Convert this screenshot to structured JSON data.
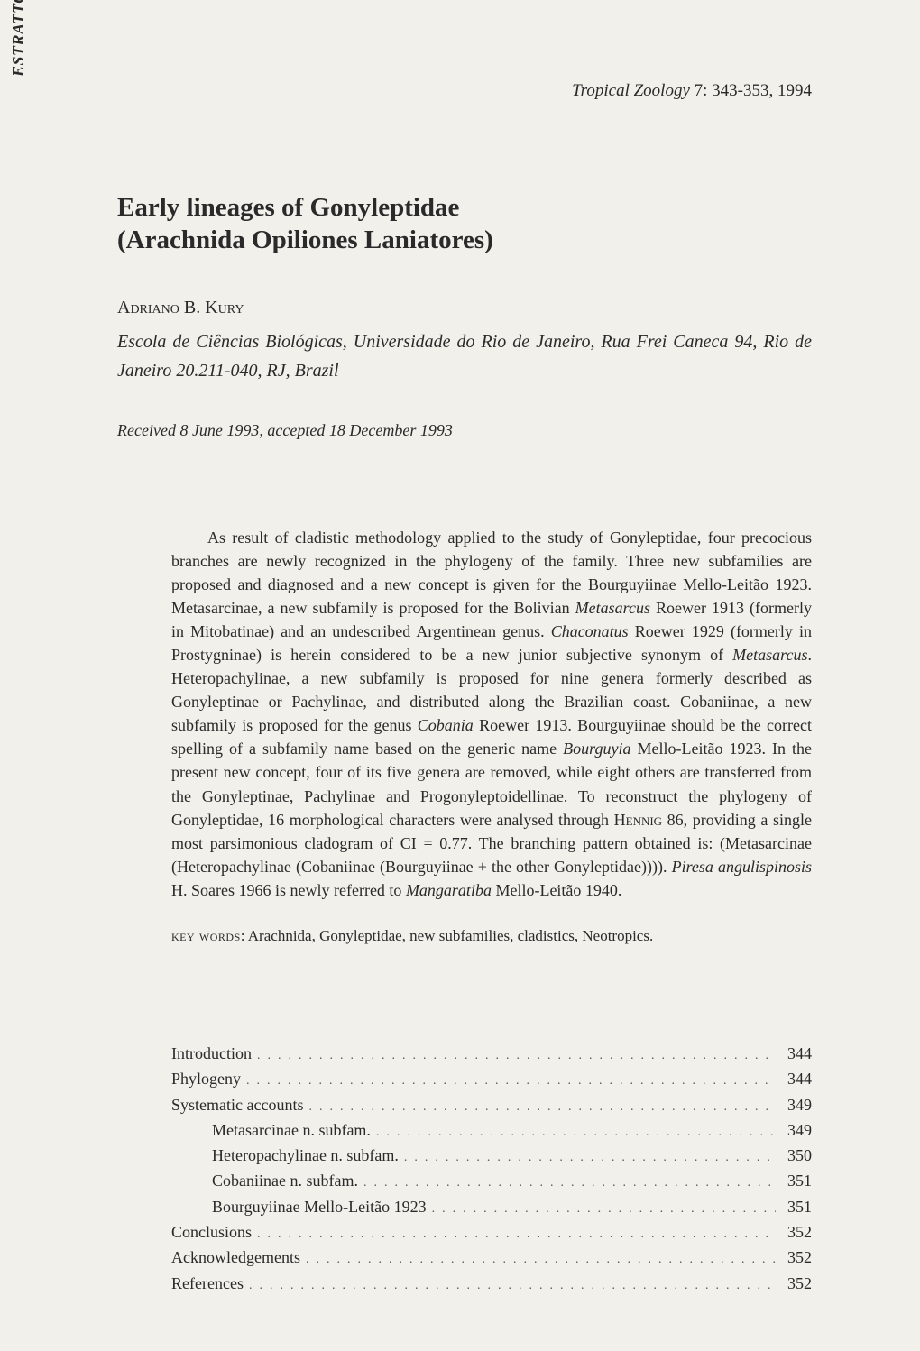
{
  "spine": "ESTRATTO / REPRINT",
  "journal": {
    "name": "Tropical Zoology",
    "rest": " 7: 343-353, 1994"
  },
  "title_line1": "Early lineages of Gonyleptidae",
  "title_line2": "(Arachnida Opiliones Laniatores)",
  "author": "Adriano B. Kury",
  "affiliation": "Escola de Ciências Biológicas, Universidade do Rio de Janeiro, Rua Frei Caneca 94, Rio de Janeiro 20.211-040, RJ, Brazil",
  "received": "Received 8 June 1993, accepted 18 December 1993",
  "abstract_parts": [
    {
      "t": "As result of cladistic methodology applied to the study of Gonyleptidae, four precocious branches are newly recognized in the phylogeny of the family. Three new subfamilies are proposed and diagnosed and a new concept is given for the Bourguyiinae Mello-Leitão 1923. Metasarcinae, a new subfamily is proposed for the Bolivian ",
      "i": false
    },
    {
      "t": "Metasarcus",
      "i": true
    },
    {
      "t": " Roewer 1913 (formerly in Mitobatinae) and an undescribed Argentinean genus. ",
      "i": false
    },
    {
      "t": "Chaconatus",
      "i": true
    },
    {
      "t": " Roewer 1929 (formerly in Prostygninae) is herein considered to be a new junior subjective synonym of ",
      "i": false
    },
    {
      "t": "Metasarcus",
      "i": true
    },
    {
      "t": ". Heteropachylinae, a new subfamily is proposed for nine genera formerly described as Gonyleptinae or Pachylinae, and distributed along the Brazilian coast. Cobaniinae, a new subfamily is proposed for the genus ",
      "i": false
    },
    {
      "t": "Cobania",
      "i": true
    },
    {
      "t": " Roewer 1913. Bourguyiinae should be the correct spelling of a subfamily name based on the generic name ",
      "i": false
    },
    {
      "t": "Bourguyia",
      "i": true
    },
    {
      "t": " Mello-Leitão 1923. In the present new concept, four of its five genera are removed, while eight others are transferred from the Gonyleptinae, Pachylinae and Progonyleptoidellinae. To reconstruct the phylogeny of Gonyleptidae, 16 morphological characters were analysed through ",
      "i": false
    },
    {
      "t": "Hennig",
      "i": false,
      "sc": true
    },
    {
      "t": " 86, providing a single most parsimonious cladogram of CI = 0.77. The branching pattern obtained is: (Metasarcinae (Heteropachylinae (Cobaniinae (Bourguyiinae + the other Gonyleptidae)))). ",
      "i": false
    },
    {
      "t": "Piresa angulispinosis",
      "i": true
    },
    {
      "t": " H. Soares 1966 is newly referred to ",
      "i": false
    },
    {
      "t": "Mangaratiba",
      "i": true
    },
    {
      "t": " Mello-Leitão 1940.",
      "i": false
    }
  ],
  "keywords_label": "key words",
  "keywords": ": Arachnida, Gonyleptidae, new subfamilies, cladistics, Neotropics.",
  "toc": [
    {
      "label": "Introduction",
      "page": "344",
      "indent": false
    },
    {
      "label": "Phylogeny",
      "page": "344",
      "indent": false
    },
    {
      "label": "Systematic accounts",
      "page": "349",
      "indent": false
    },
    {
      "label": "Metasarcinae n. subfam.",
      "page": "349",
      "indent": true
    },
    {
      "label": "Heteropachylinae n. subfam.",
      "page": "350",
      "indent": true
    },
    {
      "label": "Cobaniinae n. subfam.",
      "page": "351",
      "indent": true
    },
    {
      "label": "Bourguyiinae Mello-Leitão 1923",
      "page": "351",
      "indent": true
    },
    {
      "label": "Conclusions",
      "page": "352",
      "indent": false
    },
    {
      "label": "Acknowledgements",
      "page": "352",
      "indent": false
    },
    {
      "label": "References",
      "page": "352",
      "indent": false
    }
  ],
  "dots": ".................................................................."
}
